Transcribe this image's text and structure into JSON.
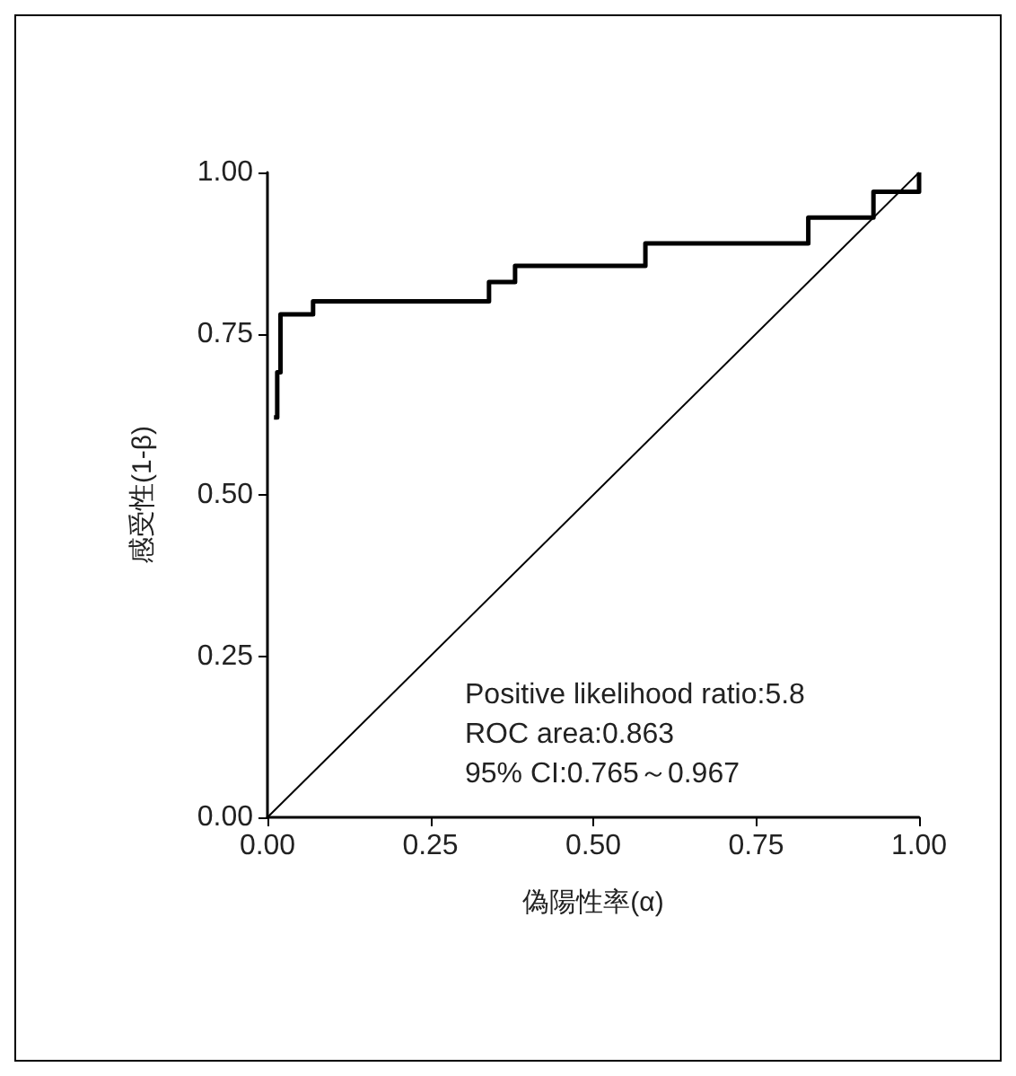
{
  "chart_data": {
    "type": "step",
    "xlabel": "偽陽性率(α)",
    "ylabel": "感受性(1-β)",
    "series": [
      {
        "color": "#000000",
        "x": [
          0.01,
          0.015,
          0.02,
          0.07,
          0.34,
          0.38,
          0.58,
          0.83,
          0.93,
          1.0
        ],
        "values": [
          0.62,
          0.69,
          0.78,
          0.8,
          0.83,
          0.855,
          0.89,
          0.93,
          0.97,
          1.0
        ]
      },
      {
        "type": "line",
        "color": "#000000",
        "x": [
          0,
          1
        ],
        "values": [
          0,
          1
        ]
      }
    ],
    "xlim": [
      0,
      1
    ],
    "ylim": [
      0,
      1
    ],
    "xticks": [
      {
        "value": 0,
        "label": "0.00"
      },
      {
        "value": 0.25,
        "label": "0.25"
      },
      {
        "value": 0.5,
        "label": "0.50"
      },
      {
        "value": 0.75,
        "label": "0.75"
      },
      {
        "value": 1,
        "label": "1.00"
      }
    ],
    "yticks": [
      {
        "value": 0,
        "label": "0.00"
      },
      {
        "value": 0.25,
        "label": "0.25"
      },
      {
        "value": 0.5,
        "label": "0.50"
      },
      {
        "value": 0.75,
        "label": "0.75"
      },
      {
        "value": 1,
        "label": "1.00"
      }
    ],
    "grid": false,
    "marker": "none",
    "annotations": [
      "Positive likelihood ratio:5.8",
      "ROC area:0.863",
      "95% CI:0.765～0.967"
    ]
  }
}
